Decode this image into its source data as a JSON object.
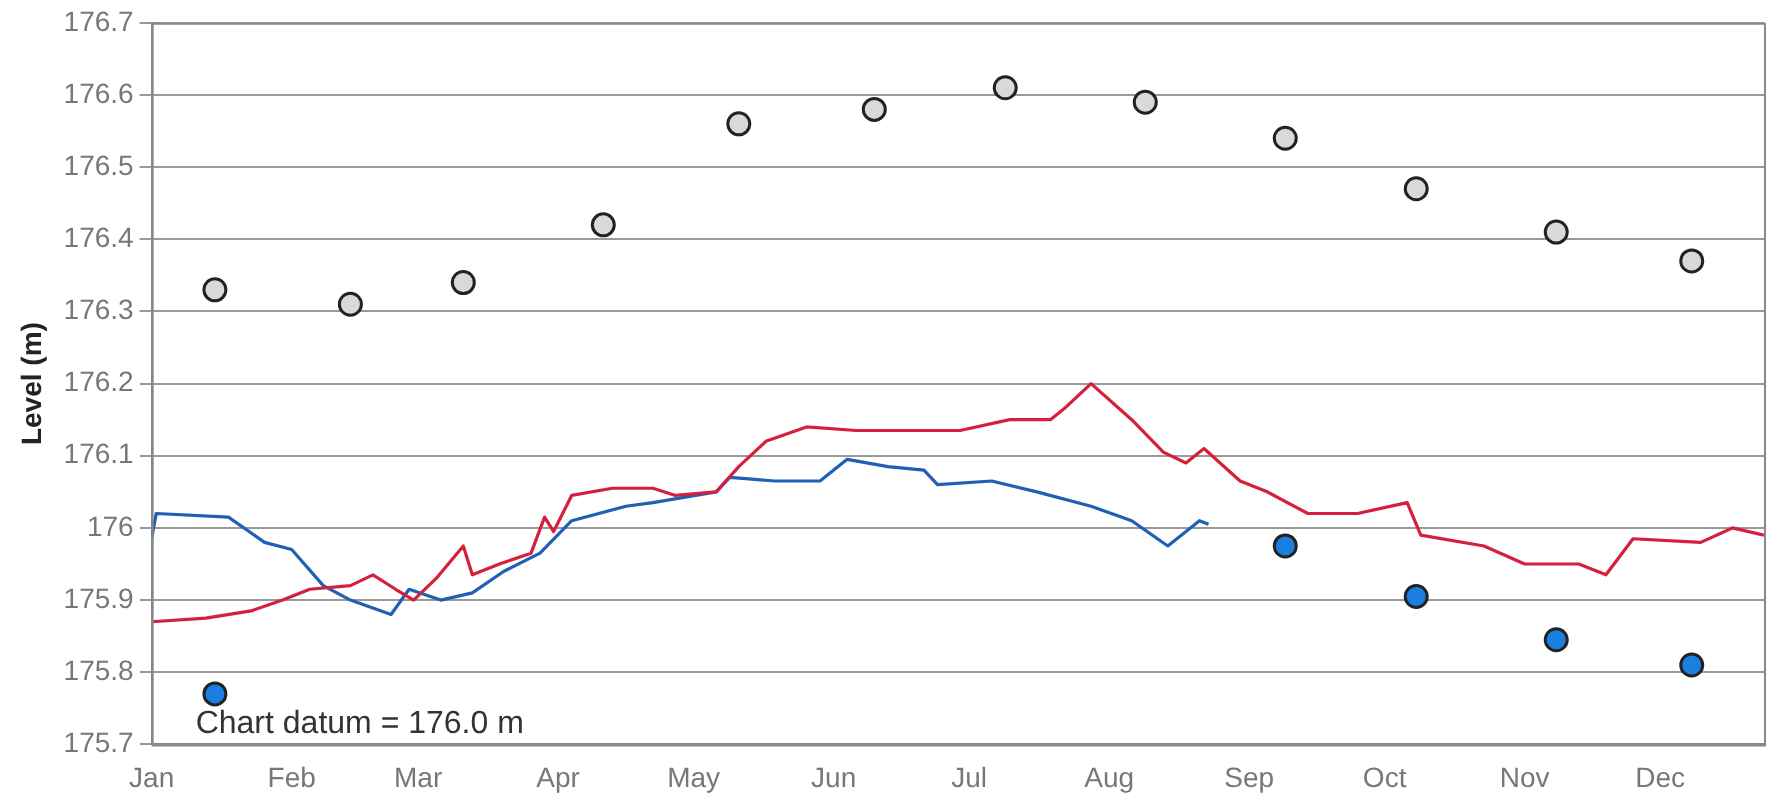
{
  "chart_data": {
    "type": "line",
    "ylabel": "Level (m)",
    "xlim": [
      "--01-01",
      "--12-24"
    ],
    "xticks": [
      {
        "value": "--01-01",
        "label": "Jan"
      },
      {
        "value": "--02-01",
        "label": "Feb"
      },
      {
        "value": "--03-01",
        "label": "Mar"
      },
      {
        "value": "--04-01",
        "label": "Apr"
      },
      {
        "value": "--05-01",
        "label": "May"
      },
      {
        "value": "--06-01",
        "label": "Jun"
      },
      {
        "value": "--07-01",
        "label": "Jul"
      },
      {
        "value": "--08-01",
        "label": "Aug"
      },
      {
        "value": "--09-01",
        "label": "Sep"
      },
      {
        "value": "--10-01",
        "label": "Oct"
      },
      {
        "value": "--11-01",
        "label": "Nov"
      },
      {
        "value": "--12-01",
        "label": "Dec"
      }
    ],
    "ylim": [
      175.7,
      176.7
    ],
    "yticks": [
      175.7,
      175.8,
      175.9,
      176,
      176.1,
      176.2,
      176.3,
      176.4,
      176.5,
      176.6,
      176.7
    ],
    "grid": "y",
    "legend": false,
    "annotations": [
      "Chart datum = 176.0 m"
    ],
    "series": [
      {
        "marker": "none",
        "color": "#d4203c",
        "x": [
          "--01-01",
          "--01-13",
          "--01-23",
          "--01-30",
          "--02-05",
          "--02-14",
          "--02-19",
          "--02-24",
          "--02-28",
          "--03-05",
          "--03-11",
          "--03-13",
          "--03-19",
          "--03-26",
          "--03-29",
          "--03-31",
          "--04-04",
          "--04-13",
          "--04-22",
          "--04-27",
          "--05-06",
          "--05-11",
          "--05-17",
          "--05-26",
          "--06-06",
          "--06-29",
          "--07-10",
          "--07-19",
          "--07-22",
          "--07-28",
          "--08-06",
          "--08-13",
          "--08-18",
          "--08-22",
          "--08-30",
          "--09-05",
          "--09-14",
          "--09-25",
          "--10-06",
          "--10-09",
          "--10-23",
          "--11-01",
          "--11-13",
          "--11-19",
          "--11-25",
          "--12-10",
          "--12-17",
          "--12-24"
        ],
        "values": [
          175.87,
          175.875,
          175.885,
          175.9,
          175.915,
          175.92,
          175.935,
          175.915,
          175.9,
          175.93,
          175.975,
          175.935,
          175.95,
          175.965,
          176.015,
          175.995,
          176.045,
          176.055,
          176.055,
          176.045,
          176.05,
          176.085,
          176.12,
          176.14,
          176.135,
          176.135,
          176.15,
          176.15,
          176.165,
          176.2,
          176.15,
          176.105,
          176.09,
          176.11,
          176.065,
          176.05,
          176.02,
          176.02,
          176.035,
          175.99,
          175.975,
          175.95,
          175.95,
          175.935,
          175.985,
          175.98,
          176,
          175.99
        ]
      },
      {
        "marker": "none",
        "color": "#1f5fb4",
        "x": [
          "--01-01",
          "--01-02",
          "--01-18",
          "--01-26",
          "--02-01",
          "--02-08",
          "--02-14",
          "--02-23",
          "--02-27",
          "--03-06",
          "--03-13",
          "--03-20",
          "--03-28",
          "--04-04",
          "--04-16",
          "--04-22",
          "--05-06",
          "--05-09",
          "--05-19",
          "--05-29",
          "--06-04",
          "--06-13",
          "--06-21",
          "--06-24",
          "--07-06",
          "--07-16",
          "--07-28",
          "--08-06",
          "--08-14",
          "--08-21",
          "--08-23"
        ],
        "values": [
          175.985,
          176.02,
          176.015,
          175.98,
          175.97,
          175.92,
          175.9,
          175.88,
          175.915,
          175.9,
          175.91,
          175.94,
          175.965,
          176.01,
          176.03,
          176.035,
          176.05,
          176.07,
          176.065,
          176.065,
          176.095,
          176.085,
          176.08,
          176.06,
          176.065,
          176.05,
          176.03,
          176.01,
          175.975,
          176.01,
          176.005
        ]
      },
      {
        "type": "scatter",
        "marker": "circle",
        "color": "#d9d9d9",
        "x": [
          "--01-15",
          "--02-14",
          "--03-11",
          "--04-11",
          "--05-11",
          "--06-10",
          "--07-09",
          "--08-09",
          "--09-09",
          "--10-08",
          "--11-08",
          "--12-08"
        ],
        "values": [
          176.33,
          176.31,
          176.34,
          176.42,
          176.56,
          176.58,
          176.61,
          176.59,
          176.54,
          176.47,
          176.41,
          176.37
        ]
      },
      {
        "type": "scatter",
        "marker": "circle",
        "color": "#1a7fe0",
        "x": [
          "--01-15",
          "--09-09",
          "--10-08",
          "--11-08",
          "--12-08"
        ],
        "values": [
          175.77,
          175.975,
          175.905,
          175.845,
          175.81
        ]
      }
    ]
  }
}
